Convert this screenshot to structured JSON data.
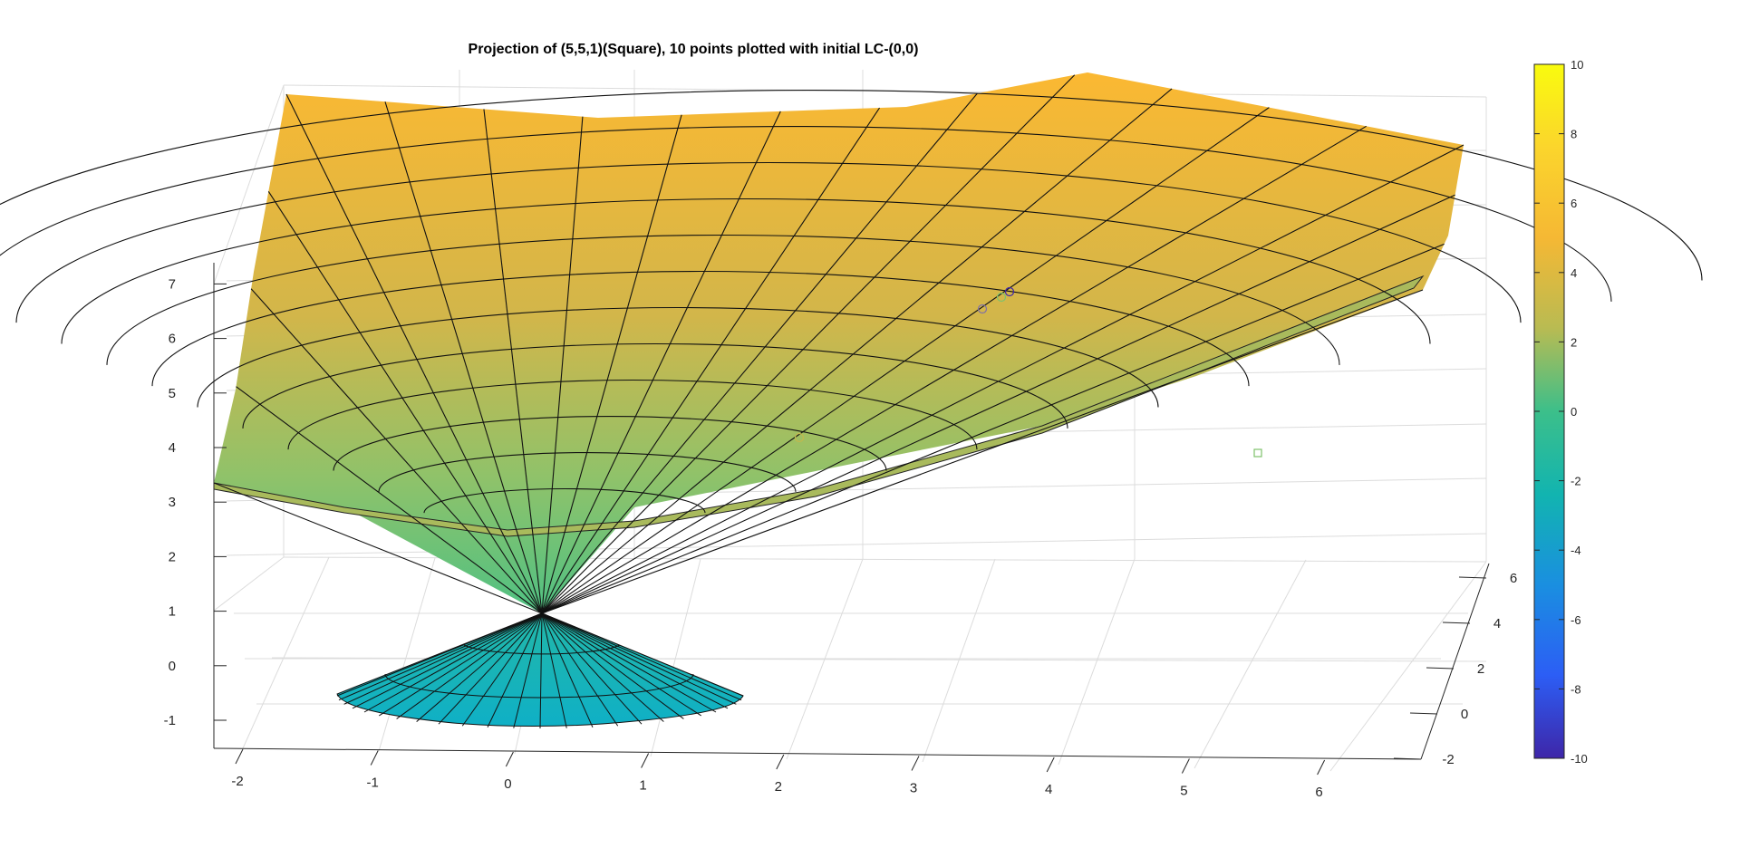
{
  "chart_data": {
    "type": "surface3d",
    "title": "Projection of (5,5,1)(Square), 10 points plotted with initial LC-(0,0)",
    "x_ticks": [
      "-2",
      "-1",
      "0",
      "1",
      "2",
      "3",
      "4",
      "5",
      "6"
    ],
    "y_ticks": [
      "-2",
      "0",
      "2",
      "4",
      "6"
    ],
    "z_ticks": [
      "-1",
      "0",
      "1",
      "2",
      "3",
      "4",
      "5",
      "6",
      "7"
    ],
    "colorbar_ticks": [
      "10",
      "8",
      "6",
      "4",
      "2",
      "0",
      "-2",
      "-4",
      "-6",
      "-8",
      "-10"
    ],
    "colorbar_range": [
      -10,
      10
    ],
    "colormap": [
      "#3e26a8",
      "#2e5ef5",
      "#1a9ed9",
      "#12b4b0",
      "#3cbf8a",
      "#7ec26c",
      "#c2b84d",
      "#f5b834",
      "#f9d52c",
      "#f9fb0e"
    ],
    "surface": {
      "apex": [
        0,
        0,
        1
      ],
      "description": "upper cone/bowl surface above apex, lower cone below apex",
      "upper_color_bottom": "#3cbf8a",
      "upper_color_top": "#fbb832",
      "lower_color": "#1ab5c0"
    },
    "points": [
      {
        "marker": "circle",
        "x": 3.2,
        "y": 3.0,
        "z": 4.2,
        "color": "#c2b84d"
      },
      {
        "marker": "circle",
        "x": 4.8,
        "y": 3.3,
        "z": 6.3,
        "color": "#7e6fa8"
      },
      {
        "marker": "circle",
        "x": 5.0,
        "y": 3.4,
        "z": 6.5,
        "color": "#7ec26c"
      },
      {
        "marker": "circle",
        "x": 5.1,
        "y": 3.4,
        "z": 6.6,
        "color": "#3e26a8"
      },
      {
        "marker": "square",
        "x": 6.0,
        "y": 5.0,
        "z": 1.0,
        "color": "#7ec26c"
      }
    ],
    "grid": true
  }
}
